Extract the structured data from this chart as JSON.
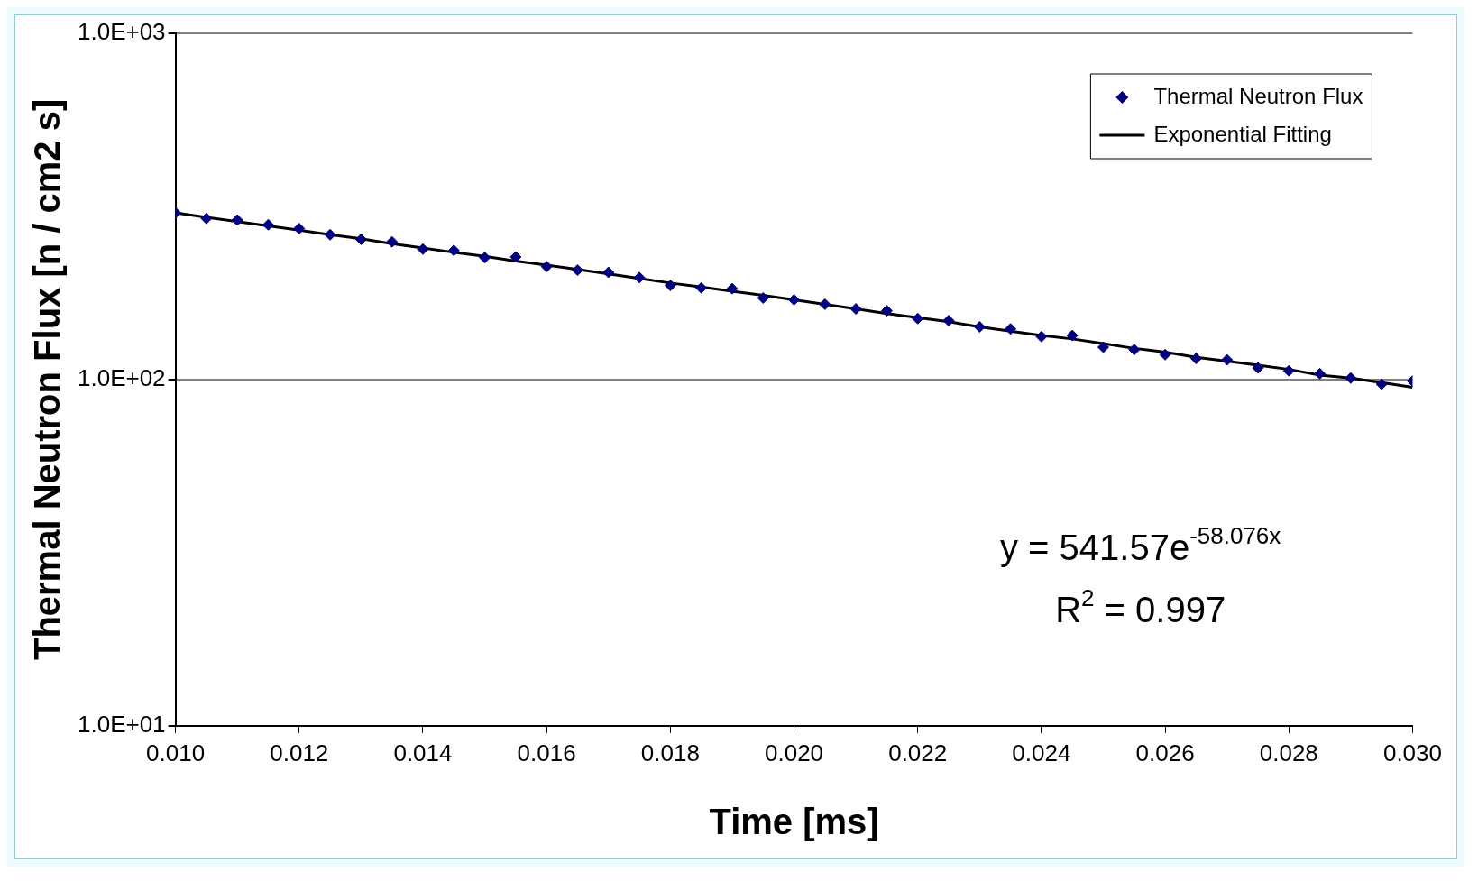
{
  "chart_data": {
    "type": "scatter",
    "xlabel": "Time [ms]",
    "ylabel": "Thermal Neutron Flux [n / cm2 s]",
    "x": [
      0.01,
      0.0105,
      0.011,
      0.0115,
      0.012,
      0.0125,
      0.013,
      0.0135,
      0.014,
      0.0145,
      0.015,
      0.0155,
      0.016,
      0.0165,
      0.017,
      0.0175,
      0.018,
      0.0185,
      0.019,
      0.0195,
      0.02,
      0.0205,
      0.021,
      0.0215,
      0.022,
      0.0225,
      0.023,
      0.0235,
      0.024,
      0.0245,
      0.025,
      0.0255,
      0.026,
      0.0265,
      0.027,
      0.0275,
      0.028,
      0.0285,
      0.029,
      0.0295,
      0.03
    ],
    "series": [
      {
        "name": "Thermal Neutron Flux",
        "color": "#000080",
        "marker": "diamond",
        "values": [
          303,
          292,
          289,
          280,
          273,
          262,
          254,
          250,
          238,
          236,
          225,
          226,
          212,
          207,
          204,
          197,
          187,
          184,
          183,
          172,
          170,
          165,
          160,
          158,
          150,
          148,
          142,
          140,
          133,
          134,
          124,
          122,
          118,
          115,
          114,
          108,
          106,
          104,
          101,
          97,
          99
        ]
      },
      {
        "name": "Exponential Fitting",
        "type": "line",
        "color": "#000000",
        "marker": "none",
        "line_style": "solid",
        "values": [
          303,
          294,
          286,
          278,
          270,
          262,
          255,
          247,
          240,
          233,
          227,
          220,
          214,
          208,
          202,
          196,
          190,
          185,
          180,
          175,
          170,
          165,
          160,
          155,
          151,
          147,
          142,
          138,
          134,
          131,
          127,
          123,
          120,
          116,
          113,
          110,
          107,
          103,
          101,
          98,
          95
        ]
      }
    ],
    "xlim": [
      0.01,
      0.03
    ],
    "xticks": [
      {
        "value": 0.01,
        "label": "0.010"
      },
      {
        "value": 0.012,
        "label": "0.012"
      },
      {
        "value": 0.014,
        "label": "0.014"
      },
      {
        "value": 0.016,
        "label": "0.016"
      },
      {
        "value": 0.018,
        "label": "0.018"
      },
      {
        "value": 0.02,
        "label": "0.020"
      },
      {
        "value": 0.022,
        "label": "0.022"
      },
      {
        "value": 0.024,
        "label": "0.024"
      },
      {
        "value": 0.026,
        "label": "0.026"
      },
      {
        "value": 0.028,
        "label": "0.028"
      },
      {
        "value": 0.03,
        "label": "0.030"
      }
    ],
    "ylim": [
      10,
      1000
    ],
    "yticks": [
      {
        "value": 10,
        "label": "1.0E+01"
      },
      {
        "value": 100,
        "label": "1.0E+02"
      },
      {
        "value": 1000,
        "label": "1.0E+03"
      }
    ],
    "log": "y",
    "grid": "y",
    "legend": "top right",
    "annotations": [
      "y = 541.57e$^{-58.076x}$",
      "R$^{2}$ = 0.997"
    ]
  }
}
